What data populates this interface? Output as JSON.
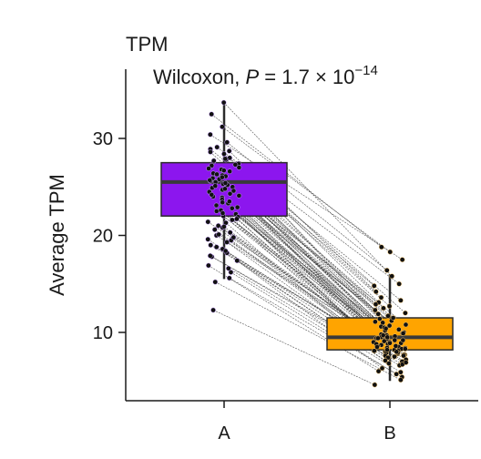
{
  "chart_data": {
    "type": "box",
    "panel_title": "TPM",
    "stat": {
      "prefix": "Wilcoxon, ",
      "p_symbol": "P",
      "value_text": " = 1.7 × 10",
      "exponent": "−14"
    },
    "xlabel": "",
    "ylabel": "Average TPM",
    "categories": [
      "A",
      "B"
    ],
    "yticks": [
      10,
      20,
      30
    ],
    "ylim": [
      3,
      37
    ],
    "colors": {
      "A": "#8c16ee",
      "B": "#ffa400",
      "median": "#3a3a3a",
      "point": "#111111",
      "line": "#333333"
    },
    "boxes": [
      {
        "category": "A",
        "whisker_low": 15.5,
        "q1": 22.0,
        "median": 25.5,
        "q3": 27.5,
        "whisker_high": 33.5
      },
      {
        "category": "B",
        "whisker_low": 5.0,
        "q1": 8.2,
        "median": 9.5,
        "q3": 11.5,
        "whisker_high": 16.0
      }
    ],
    "pairs": [
      [
        33.7,
        15.8
      ],
      [
        32.5,
        18.8
      ],
      [
        31.2,
        18.3
      ],
      [
        30.4,
        17.5
      ],
      [
        29.6,
        16.4
      ],
      [
        29.1,
        15.0
      ],
      [
        28.7,
        14.2
      ],
      [
        28.4,
        13.6
      ],
      [
        28.0,
        13.1
      ],
      [
        27.8,
        12.7
      ],
      [
        27.6,
        12.3
      ],
      [
        27.4,
        12.0
      ],
      [
        27.2,
        11.7
      ],
      [
        27.0,
        11.4
      ],
      [
        26.8,
        11.2
      ],
      [
        26.6,
        11.0
      ],
      [
        26.4,
        10.8
      ],
      [
        26.2,
        10.6
      ],
      [
        26.1,
        10.5
      ],
      [
        25.9,
        10.3
      ],
      [
        25.8,
        10.1
      ],
      [
        25.6,
        10.0
      ],
      [
        25.5,
        9.9
      ],
      [
        25.3,
        9.8
      ],
      [
        25.2,
        9.7
      ],
      [
        25.0,
        9.6
      ],
      [
        24.9,
        9.5
      ],
      [
        24.7,
        9.4
      ],
      [
        24.5,
        9.3
      ],
      [
        24.3,
        9.2
      ],
      [
        24.1,
        9.1
      ],
      [
        23.9,
        9.0
      ],
      [
        23.7,
        8.9
      ],
      [
        23.4,
        8.8
      ],
      [
        23.1,
        8.7
      ],
      [
        22.8,
        8.6
      ],
      [
        22.5,
        8.5
      ],
      [
        22.2,
        8.4
      ],
      [
        21.9,
        8.3
      ],
      [
        21.6,
        8.2
      ],
      [
        21.3,
        8.1
      ],
      [
        21.0,
        8.0
      ],
      [
        20.6,
        7.9
      ],
      [
        20.3,
        7.8
      ],
      [
        20.0,
        7.7
      ],
      [
        19.6,
        7.6
      ],
      [
        19.3,
        7.4
      ],
      [
        19.0,
        7.2
      ],
      [
        18.6,
        7.0
      ],
      [
        18.2,
        6.8
      ],
      [
        17.8,
        6.6
      ],
      [
        17.4,
        6.3
      ],
      [
        16.9,
        6.0
      ],
      [
        16.2,
        5.7
      ],
      [
        15.6,
        5.4
      ],
      [
        15.2,
        5.1
      ],
      [
        12.3,
        4.6
      ],
      [
        28.9,
        14.8
      ],
      [
        27.9,
        13.3
      ],
      [
        27.3,
        11.9
      ],
      [
        26.7,
        11.1
      ],
      [
        26.3,
        10.7
      ],
      [
        25.7,
        10.2
      ],
      [
        25.1,
        9.7
      ],
      [
        24.6,
        9.4
      ],
      [
        24.0,
        9.0
      ],
      [
        23.3,
        8.8
      ],
      [
        22.6,
        8.5
      ],
      [
        22.0,
        8.4
      ],
      [
        21.4,
        8.1
      ],
      [
        20.8,
        7.9
      ],
      [
        20.1,
        7.7
      ],
      [
        19.5,
        7.5
      ],
      [
        18.8,
        7.1
      ],
      [
        17.9,
        6.7
      ],
      [
        28.6,
        12.9
      ],
      [
        27.7,
        12.5
      ],
      [
        26.9,
        11.5
      ],
      [
        26.0,
        10.4
      ],
      [
        25.4,
        9.9
      ],
      [
        24.8,
        9.5
      ],
      [
        24.2,
        9.2
      ],
      [
        23.5,
        8.9
      ],
      [
        22.9,
        8.6
      ],
      [
        22.3,
        8.3
      ],
      [
        21.7,
        8.2
      ],
      [
        20.9,
        8.0
      ],
      [
        19.8,
        7.6
      ],
      [
        18.4,
        6.9
      ],
      [
        16.6,
        5.9
      ]
    ]
  }
}
